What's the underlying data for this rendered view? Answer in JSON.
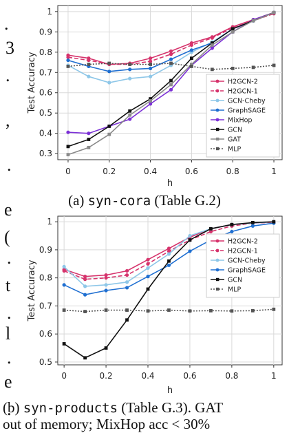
{
  "left_margin_glyphs": [
    ".",
    "3",
    ".",
    ",",
    ".",
    "e",
    "(",
    ".",
    "t",
    ".",
    "l",
    ".",
    "e",
    "."
  ],
  "caption_a": {
    "prefix": "(a) ",
    "dataset": "syn-cora",
    "suffix": " (Table G.2)"
  },
  "caption_b": {
    "prefix": "(b) ",
    "dataset": "syn-products",
    "suffix": " (Table G.3).  GAT",
    "line2": "out of memory; MixHop acc < 30%"
  },
  "chart_data": [
    {
      "type": "line",
      "xlabel": "h",
      "ylabel": "Test Accuracy",
      "x": [
        0,
        0.1,
        0.2,
        0.3,
        0.4,
        0.5,
        0.6,
        0.7,
        0.8,
        0.9,
        1
      ],
      "xticks": [
        "0",
        "0.2",
        "0.4",
        "0.6",
        "0.8",
        "1"
      ],
      "yticks": [
        "0.3",
        "0.4",
        "0.5",
        "0.6",
        "0.7",
        "0.8",
        "0.9",
        "1"
      ],
      "xlim": [
        -0.05,
        1.04
      ],
      "ylim": [
        0.27,
        1.03
      ],
      "grid": true,
      "legend_position": "right",
      "series": [
        {
          "name": "H2GCN-2",
          "color": "#d6336c",
          "dash": "solid",
          "marker": "circle",
          "values": [
            0.785,
            0.77,
            0.74,
            0.745,
            0.77,
            0.805,
            0.845,
            0.875,
            0.925,
            0.96,
            0.995
          ]
        },
        {
          "name": "H2GCN-1",
          "color": "#d6336c",
          "dash": "dashed",
          "marker": "circle",
          "values": [
            0.775,
            0.76,
            0.74,
            0.74,
            0.755,
            0.79,
            0.835,
            0.87,
            0.92,
            0.955,
            0.99
          ]
        },
        {
          "name": "GCN-Cheby",
          "color": "#8ec7e8",
          "dash": "solid",
          "marker": "circle",
          "values": [
            0.735,
            0.68,
            0.65,
            0.67,
            0.68,
            0.735,
            0.8,
            0.85,
            0.915,
            0.955,
            0.995
          ]
        },
        {
          "name": "GraphSAGE",
          "color": "#1f6fd1",
          "dash": "solid",
          "marker": "circle",
          "values": [
            0.76,
            0.73,
            0.705,
            0.715,
            0.72,
            0.765,
            0.81,
            0.845,
            0.915,
            0.955,
            0.995
          ]
        },
        {
          "name": "MixHop",
          "color": "#7b2fd6",
          "dash": "solid",
          "marker": "circle",
          "values": [
            0.405,
            0.4,
            0.435,
            0.47,
            0.545,
            0.615,
            0.735,
            0.82,
            0.9,
            0.96,
            0.995
          ]
        },
        {
          "name": "GCN",
          "color": "#111111",
          "dash": "solid",
          "marker": "square",
          "values": [
            0.335,
            0.37,
            0.435,
            0.51,
            0.57,
            0.66,
            0.77,
            0.845,
            0.915,
            0.955,
            0.995
          ]
        },
        {
          "name": "GAT",
          "color": "#8a8a8a",
          "dash": "solid",
          "marker": "square",
          "values": [
            0.295,
            0.33,
            0.395,
            0.49,
            0.56,
            0.64,
            0.74,
            0.835,
            0.9,
            0.955,
            0.995
          ]
        },
        {
          "name": "MLP",
          "color": "#555555",
          "dash": "dotted",
          "marker": "square",
          "values": [
            0.73,
            0.74,
            0.745,
            0.74,
            0.74,
            0.745,
            0.73,
            0.715,
            0.72,
            0.725,
            0.735
          ]
        }
      ]
    },
    {
      "type": "line",
      "xlabel": "h",
      "ylabel": "Test Accuracy",
      "x": [
        0,
        0.1,
        0.2,
        0.3,
        0.4,
        0.5,
        0.6,
        0.7,
        0.8,
        0.9,
        1
      ],
      "xticks": [
        "0",
        "0.2",
        "0.4",
        "0.6",
        "0.8",
        "1"
      ],
      "yticks": [
        "0.5",
        "0.6",
        "0.7",
        "0.8",
        "0.9",
        "1"
      ],
      "xlim": [
        -0.03,
        1.04
      ],
      "ylim": [
        0.49,
        1.02
      ],
      "grid": true,
      "legend_position": "right",
      "series": [
        {
          "name": "H2GCN-2",
          "color": "#d6336c",
          "dash": "solid",
          "marker": "circle",
          "values": [
            0.83,
            0.805,
            0.81,
            0.825,
            0.865,
            0.905,
            0.945,
            0.975,
            0.99,
            0.995,
            1.0
          ]
        },
        {
          "name": "H2GCN-1",
          "color": "#d6336c",
          "dash": "dashed",
          "marker": "circle",
          "values": [
            0.825,
            0.795,
            0.8,
            0.81,
            0.85,
            0.895,
            0.935,
            0.965,
            0.985,
            0.995,
            0.998
          ]
        },
        {
          "name": "GCN-Cheby",
          "color": "#8ec7e8",
          "dash": "solid",
          "marker": "circle",
          "values": [
            0.84,
            0.77,
            0.775,
            0.785,
            0.835,
            0.885,
            0.95,
            0.975,
            0.99,
            0.995,
            1.0
          ]
        },
        {
          "name": "GraphSAGE",
          "color": "#1f6fd1",
          "dash": "solid",
          "marker": "circle",
          "values": [
            0.775,
            0.74,
            0.755,
            0.765,
            0.805,
            0.845,
            0.895,
            0.935,
            0.965,
            0.985,
            0.995
          ]
        },
        {
          "name": "GCN",
          "color": "#111111",
          "dash": "solid",
          "marker": "square",
          "values": [
            0.565,
            0.515,
            0.55,
            0.65,
            0.76,
            0.86,
            0.935,
            0.975,
            0.99,
            0.997,
            1.0
          ]
        },
        {
          "name": "MLP",
          "color": "#555555",
          "dash": "dotted",
          "marker": "square",
          "values": [
            0.685,
            0.68,
            0.685,
            0.685,
            0.682,
            0.685,
            0.682,
            0.683,
            0.682,
            0.683,
            0.688
          ]
        }
      ]
    }
  ]
}
